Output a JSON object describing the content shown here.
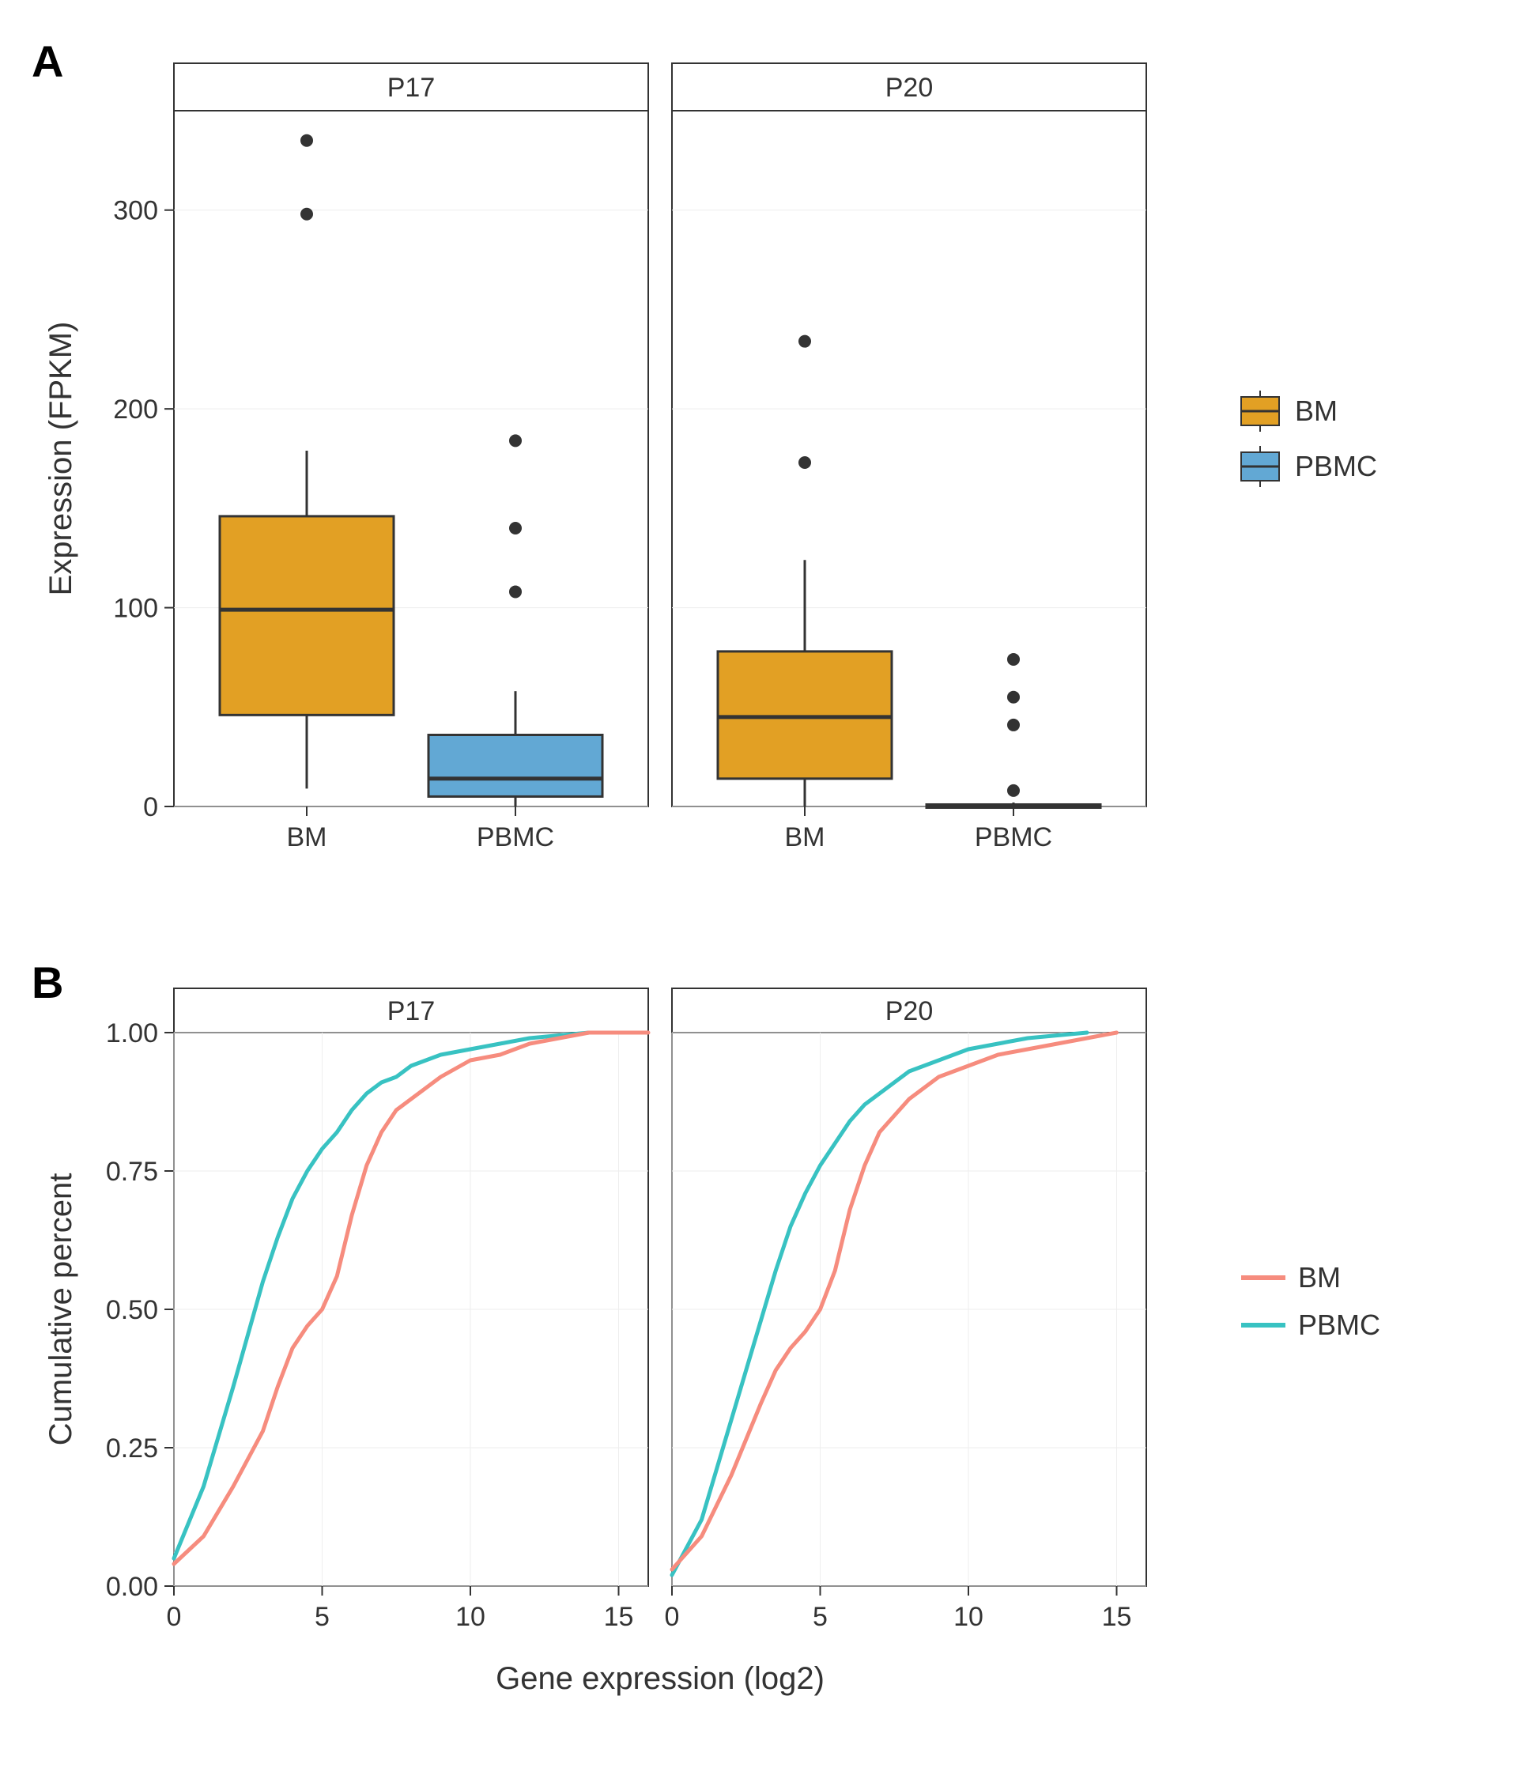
{
  "palette": {
    "bm_fill": "#e2a024",
    "pbmc_fill": "#62a8d4",
    "bm_line": "#f68c7e",
    "pbmc_line": "#38c2c2",
    "stroke": "#333333",
    "grid": "#eeeeee",
    "panel_border": "#333333",
    "strip_bg": "#ffffff",
    "bg": "#ffffff",
    "tick": "#333333"
  },
  "labels": {
    "panelA": "A",
    "panelB": "B",
    "yA": "Expression (FPKM)",
    "xB": "Gene expression (log2)",
    "yB": "Cumulative percent",
    "facet_p17": "P17",
    "facet_p20": "P20",
    "cat_bm": "BM",
    "cat_pbmc": "PBMC",
    "legendA_bm": "BM",
    "legendA_pbmc": "PBMC",
    "legendB_bm": "BM",
    "legendB_pbmc": "PBMC"
  },
  "chartA": {
    "type": "boxplot",
    "ylim": [
      0,
      350
    ],
    "yticks": [
      0,
      100,
      200,
      300
    ],
    "facets": [
      "P17",
      "P20"
    ],
    "categories": [
      "BM",
      "PBMC"
    ],
    "box_stroke_width": 3,
    "whisker_stroke_width": 3,
    "outlier_radius": 8,
    "data": {
      "P17": {
        "BM": {
          "q1": 46,
          "med": 99,
          "q3": 146,
          "wlo": 9,
          "whi": 179,
          "outliers": [
            298,
            335
          ]
        },
        "PBMC": {
          "q1": 5,
          "med": 14,
          "q3": 36,
          "wlo": 0,
          "whi": 58,
          "outliers": [
            108,
            140,
            184
          ]
        }
      },
      "P20": {
        "BM": {
          "q1": 14,
          "med": 45,
          "q3": 78,
          "wlo": 0,
          "whi": 124,
          "outliers": [
            173,
            234
          ]
        },
        "PBMC": {
          "q1": 0,
          "med": 0,
          "q3": 1,
          "wlo": 0,
          "whi": 2,
          "outliers": [
            8,
            41,
            55,
            74
          ]
        }
      }
    }
  },
  "chartB": {
    "type": "line",
    "xlim": [
      0,
      16
    ],
    "ylim": [
      0,
      1.0
    ],
    "xticks": [
      0,
      5,
      10,
      15
    ],
    "yticks": [
      0.0,
      0.25,
      0.5,
      0.75,
      1.0
    ],
    "line_width": 5,
    "facets": [
      "P17",
      "P20"
    ],
    "series": {
      "P17": {
        "BM": [
          [
            0,
            0.04
          ],
          [
            1,
            0.09
          ],
          [
            2,
            0.18
          ],
          [
            3,
            0.28
          ],
          [
            3.5,
            0.36
          ],
          [
            4,
            0.43
          ],
          [
            4.5,
            0.47
          ],
          [
            5,
            0.5
          ],
          [
            5.5,
            0.56
          ],
          [
            6,
            0.67
          ],
          [
            6.5,
            0.76
          ],
          [
            7,
            0.82
          ],
          [
            7.5,
            0.86
          ],
          [
            8,
            0.88
          ],
          [
            9,
            0.92
          ],
          [
            10,
            0.95
          ],
          [
            11,
            0.96
          ],
          [
            12,
            0.98
          ],
          [
            13,
            0.99
          ],
          [
            14,
            1.0
          ],
          [
            16,
            1.0
          ]
        ],
        "PBMC": [
          [
            0,
            0.05
          ],
          [
            1,
            0.18
          ],
          [
            2,
            0.36
          ],
          [
            3,
            0.55
          ],
          [
            3.5,
            0.63
          ],
          [
            4,
            0.7
          ],
          [
            4.5,
            0.75
          ],
          [
            5,
            0.79
          ],
          [
            5.5,
            0.82
          ],
          [
            6,
            0.86
          ],
          [
            6.5,
            0.89
          ],
          [
            7,
            0.91
          ],
          [
            7.5,
            0.92
          ],
          [
            8,
            0.94
          ],
          [
            9,
            0.96
          ],
          [
            10,
            0.97
          ],
          [
            11,
            0.98
          ],
          [
            12,
            0.99
          ],
          [
            13,
            0.995
          ],
          [
            14,
            1.0
          ]
        ]
      },
      "P20": {
        "BM": [
          [
            0,
            0.03
          ],
          [
            1,
            0.09
          ],
          [
            2,
            0.2
          ],
          [
            3,
            0.33
          ],
          [
            3.5,
            0.39
          ],
          [
            4,
            0.43
          ],
          [
            4.5,
            0.46
          ],
          [
            5,
            0.5
          ],
          [
            5.5,
            0.57
          ],
          [
            6,
            0.68
          ],
          [
            6.5,
            0.76
          ],
          [
            7,
            0.82
          ],
          [
            7.5,
            0.85
          ],
          [
            8,
            0.88
          ],
          [
            9,
            0.92
          ],
          [
            10,
            0.94
          ],
          [
            11,
            0.96
          ],
          [
            12,
            0.97
          ],
          [
            13,
            0.98
          ],
          [
            14,
            0.99
          ],
          [
            15,
            1.0
          ]
        ],
        "PBMC": [
          [
            0,
            0.02
          ],
          [
            1,
            0.12
          ],
          [
            2,
            0.3
          ],
          [
            3,
            0.48
          ],
          [
            3.5,
            0.57
          ],
          [
            4,
            0.65
          ],
          [
            4.5,
            0.71
          ],
          [
            5,
            0.76
          ],
          [
            5.5,
            0.8
          ],
          [
            6,
            0.84
          ],
          [
            6.5,
            0.87
          ],
          [
            7,
            0.89
          ],
          [
            7.5,
            0.91
          ],
          [
            8,
            0.93
          ],
          [
            9,
            0.95
          ],
          [
            10,
            0.97
          ],
          [
            11,
            0.98
          ],
          [
            12,
            0.99
          ],
          [
            13,
            0.995
          ],
          [
            14,
            1.0
          ]
        ]
      }
    }
  },
  "typography": {
    "axis_title_fontsize": 40,
    "axis_tick_fontsize": 34,
    "strip_fontsize": 34,
    "legend_fontsize": 36,
    "panel_label_fontsize": 56
  }
}
